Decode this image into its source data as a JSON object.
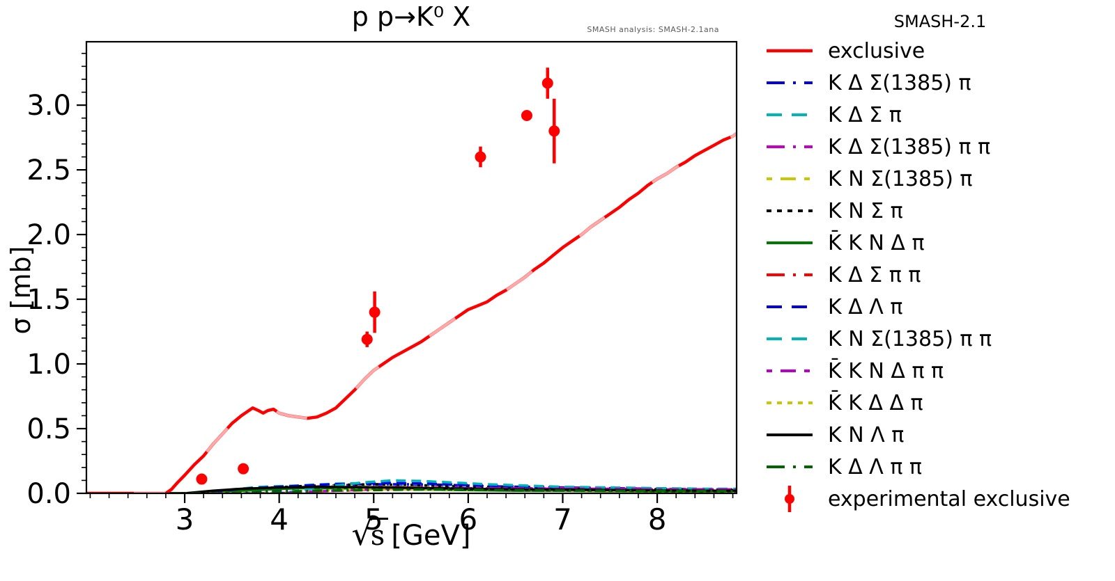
{
  "figure": {
    "title": "p p→K⁰ X",
    "watermark": "SMASH analysis: SMASH-2.1ana"
  },
  "axes": {
    "ylabel": "σ [mb]",
    "xlabel": {
      "radical": "√",
      "radicand": "s",
      "unit": "[GeV]"
    }
  },
  "legend": {
    "title": "SMASH-2.1",
    "experimental_label": "experimental exclusive"
  },
  "chart_data": {
    "type": "line",
    "title": "p p→K⁰ X",
    "xlabel": "√s [GeV]",
    "ylabel": "σ [mb]",
    "xlim": [
      1.96,
      8.84
    ],
    "ylim": [
      0,
      3.49
    ],
    "x_major_ticks": [
      3,
      4,
      5,
      6,
      7,
      8
    ],
    "x_tick_labels": [
      "3",
      "4",
      "5",
      "6",
      "7",
      "8"
    ],
    "x_minor_step": 0.2,
    "y_major_ticks": [
      0,
      0.5,
      1.0,
      1.5,
      2.0,
      2.5,
      3.0
    ],
    "y_tick_labels": [
      "0.0",
      "0.5",
      "1.0",
      "1.5",
      "2.0",
      "2.5",
      "3.0"
    ],
    "y_minor_step": 0.1,
    "grid": false,
    "legend_position": "right",
    "series": [
      {
        "name": "exclusive",
        "color": "#ff0000",
        "style": "solid",
        "width": 4.5,
        "overlay_color": "#ffa8a8",
        "points": [
          [
            1.96,
            0
          ],
          [
            2.4,
            0
          ],
          [
            2.8,
            0
          ],
          [
            2.86,
            0.03
          ],
          [
            2.92,
            0.08
          ],
          [
            3.0,
            0.14
          ],
          [
            3.1,
            0.22
          ],
          [
            3.2,
            0.29
          ],
          [
            3.3,
            0.38
          ],
          [
            3.4,
            0.46
          ],
          [
            3.5,
            0.54
          ],
          [
            3.6,
            0.6
          ],
          [
            3.66,
            0.63
          ],
          [
            3.72,
            0.66
          ],
          [
            3.78,
            0.64
          ],
          [
            3.83,
            0.62
          ],
          [
            3.88,
            0.64
          ],
          [
            3.94,
            0.65
          ],
          [
            4.0,
            0.62
          ],
          [
            4.1,
            0.6
          ],
          [
            4.2,
            0.59
          ],
          [
            4.3,
            0.58
          ],
          [
            4.4,
            0.59
          ],
          [
            4.5,
            0.62
          ],
          [
            4.6,
            0.66
          ],
          [
            4.7,
            0.73
          ],
          [
            4.8,
            0.8
          ],
          [
            4.9,
            0.88
          ],
          [
            5.0,
            0.95
          ],
          [
            5.1,
            1.0
          ],
          [
            5.2,
            1.05
          ],
          [
            5.3,
            1.09
          ],
          [
            5.4,
            1.13
          ],
          [
            5.5,
            1.17
          ],
          [
            5.6,
            1.22
          ],
          [
            5.7,
            1.27
          ],
          [
            5.8,
            1.32
          ],
          [
            5.9,
            1.37
          ],
          [
            6.0,
            1.42
          ],
          [
            6.1,
            1.45
          ],
          [
            6.2,
            1.48
          ],
          [
            6.3,
            1.53
          ],
          [
            6.4,
            1.57
          ],
          [
            6.5,
            1.62
          ],
          [
            6.6,
            1.67
          ],
          [
            6.7,
            1.73
          ],
          [
            6.8,
            1.78
          ],
          [
            6.9,
            1.84
          ],
          [
            7.0,
            1.9
          ],
          [
            7.1,
            1.95
          ],
          [
            7.2,
            2.0
          ],
          [
            7.3,
            2.06
          ],
          [
            7.4,
            2.11
          ],
          [
            7.5,
            2.16
          ],
          [
            7.6,
            2.21
          ],
          [
            7.7,
            2.27
          ],
          [
            7.8,
            2.32
          ],
          [
            7.9,
            2.38
          ],
          [
            8.0,
            2.43
          ],
          [
            8.1,
            2.47
          ],
          [
            8.2,
            2.52
          ],
          [
            8.3,
            2.56
          ],
          [
            8.4,
            2.61
          ],
          [
            8.5,
            2.65
          ],
          [
            8.6,
            2.69
          ],
          [
            8.7,
            2.73
          ],
          [
            8.8,
            2.76
          ],
          [
            8.84,
            2.78
          ]
        ]
      },
      {
        "name": "K Δ Σ(1385) π",
        "color": "#0000e0",
        "style": "dashdot",
        "width": 3.5,
        "points": [
          [
            2.0,
            0
          ],
          [
            3.6,
            0
          ],
          [
            3.9,
            0.02
          ],
          [
            4.2,
            0.04
          ],
          [
            4.6,
            0.06
          ],
          [
            5.0,
            0.07
          ],
          [
            5.4,
            0.07
          ],
          [
            5.8,
            0.065
          ],
          [
            6.2,
            0.055
          ],
          [
            6.6,
            0.05
          ],
          [
            7.0,
            0.045
          ],
          [
            7.5,
            0.04
          ],
          [
            8.0,
            0.035
          ],
          [
            8.5,
            0.03
          ],
          [
            8.84,
            0.03
          ]
        ]
      },
      {
        "name": "K Δ Σ π",
        "color": "#00b5b5",
        "style": "dashed",
        "width": 3.5,
        "points": [
          [
            2.0,
            0
          ],
          [
            3.25,
            0
          ],
          [
            3.5,
            0.03
          ],
          [
            3.8,
            0.05
          ],
          [
            4.2,
            0.06
          ],
          [
            4.6,
            0.075
          ],
          [
            5.0,
            0.08
          ],
          [
            5.4,
            0.075
          ],
          [
            5.8,
            0.065
          ],
          [
            6.2,
            0.055
          ],
          [
            6.6,
            0.045
          ],
          [
            7.0,
            0.04
          ],
          [
            7.5,
            0.035
          ],
          [
            8.0,
            0.03
          ],
          [
            8.5,
            0.025
          ],
          [
            8.84,
            0.025
          ]
        ]
      },
      {
        "name": "K Δ Σ(1385) π π",
        "color": "#c400c4",
        "style": "dashdot",
        "width": 3.5,
        "points": [
          [
            2.0,
            0
          ],
          [
            3.5,
            0
          ],
          [
            3.8,
            0.03
          ],
          [
            4.1,
            0.05
          ],
          [
            4.5,
            0.055
          ],
          [
            5.0,
            0.05
          ],
          [
            5.5,
            0.05
          ],
          [
            6.0,
            0.045
          ],
          [
            6.5,
            0.04
          ],
          [
            7.0,
            0.04
          ],
          [
            7.5,
            0.035
          ],
          [
            8.0,
            0.035
          ],
          [
            8.5,
            0.03
          ],
          [
            8.84,
            0.03
          ]
        ]
      },
      {
        "name": "K N Σ(1385) π",
        "color": "#c8c800",
        "style": "shortlong",
        "width": 3.5,
        "points": [
          [
            2.0,
            0
          ],
          [
            3.4,
            0
          ],
          [
            3.6,
            0.02
          ],
          [
            3.9,
            0.04
          ],
          [
            4.3,
            0.05
          ],
          [
            4.7,
            0.055
          ],
          [
            5.1,
            0.05
          ],
          [
            5.5,
            0.045
          ],
          [
            6.0,
            0.04
          ],
          [
            6.5,
            0.035
          ],
          [
            7.0,
            0.03
          ],
          [
            7.5,
            0.028
          ],
          [
            8.0,
            0.025
          ],
          [
            8.5,
            0.022
          ],
          [
            8.84,
            0.02
          ]
        ]
      },
      {
        "name": "K N Σ π",
        "color": "#000000",
        "style": "dotted",
        "width": 3.5,
        "points": [
          [
            2.0,
            0
          ],
          [
            3.2,
            0
          ],
          [
            3.5,
            0.025
          ],
          [
            3.8,
            0.04
          ],
          [
            4.2,
            0.055
          ],
          [
            4.6,
            0.065
          ],
          [
            5.0,
            0.07
          ],
          [
            5.4,
            0.065
          ],
          [
            5.8,
            0.055
          ],
          [
            6.2,
            0.05
          ],
          [
            6.6,
            0.04
          ],
          [
            7.0,
            0.035
          ],
          [
            7.5,
            0.03
          ],
          [
            8.0,
            0.03
          ],
          [
            8.5,
            0.025
          ],
          [
            8.84,
            0.025
          ]
        ]
      },
      {
        "name": "K̄ K N Δ π",
        "color": "#007a00",
        "style": "solid",
        "width": 3.5,
        "points": [
          [
            2.0,
            0
          ],
          [
            3.3,
            0
          ],
          [
            3.6,
            0.02
          ],
          [
            3.9,
            0.03
          ],
          [
            4.2,
            0.04
          ],
          [
            4.6,
            0.04
          ],
          [
            5.0,
            0.035
          ],
          [
            5.5,
            0.03
          ],
          [
            6.0,
            0.025
          ],
          [
            6.5,
            0.02
          ],
          [
            7.0,
            0.02
          ],
          [
            7.5,
            0.018
          ],
          [
            8.0,
            0.015
          ],
          [
            8.5,
            0.015
          ],
          [
            8.84,
            0.015
          ]
        ]
      },
      {
        "name": "K Δ Σ π π",
        "color": "#ff0000",
        "style": "dashdot",
        "width": 3.5,
        "points": [
          [
            2.0,
            0
          ],
          [
            3.8,
            0
          ],
          [
            4.2,
            0.01
          ],
          [
            4.6,
            0.02
          ],
          [
            5.0,
            0.025
          ],
          [
            5.5,
            0.03
          ],
          [
            6.0,
            0.03
          ],
          [
            6.5,
            0.028
          ],
          [
            7.0,
            0.025
          ],
          [
            7.5,
            0.025
          ],
          [
            8.0,
            0.022
          ],
          [
            8.5,
            0.02
          ],
          [
            8.84,
            0.02
          ]
        ]
      },
      {
        "name": "K Δ Λ π",
        "color": "#0000e0",
        "style": "dashed",
        "width": 3.5,
        "points": [
          [
            2.0,
            0
          ],
          [
            3.1,
            0
          ],
          [
            3.4,
            0.02
          ],
          [
            3.7,
            0.04
          ],
          [
            4.0,
            0.05
          ],
          [
            4.4,
            0.065
          ],
          [
            4.8,
            0.075
          ],
          [
            5.2,
            0.08
          ],
          [
            5.6,
            0.075
          ],
          [
            6.0,
            0.065
          ],
          [
            6.4,
            0.055
          ],
          [
            6.8,
            0.05
          ],
          [
            7.2,
            0.045
          ],
          [
            7.6,
            0.04
          ],
          [
            8.0,
            0.035
          ],
          [
            8.5,
            0.03
          ],
          [
            8.84,
            0.03
          ]
        ]
      },
      {
        "name": "K N Σ(1385) π π",
        "color": "#00b5b5",
        "style": "dashed",
        "width": 3.5,
        "points": [
          [
            2.0,
            0
          ],
          [
            4.0,
            0
          ],
          [
            4.3,
            0.03
          ],
          [
            4.6,
            0.06
          ],
          [
            4.9,
            0.085
          ],
          [
            5.2,
            0.1
          ],
          [
            5.5,
            0.095
          ],
          [
            5.8,
            0.085
          ],
          [
            6.2,
            0.07
          ],
          [
            6.6,
            0.06
          ],
          [
            7.0,
            0.05
          ],
          [
            7.5,
            0.045
          ],
          [
            8.0,
            0.04
          ],
          [
            8.5,
            0.035
          ],
          [
            8.84,
            0.035
          ]
        ]
      },
      {
        "name": "K̄ K N Δ π π",
        "color": "#b800c8",
        "style": "shortlong",
        "width": 3.5,
        "points": [
          [
            2.0,
            0
          ],
          [
            4.0,
            0
          ],
          [
            4.4,
            0.015
          ],
          [
            4.8,
            0.025
          ],
          [
            5.2,
            0.035
          ],
          [
            5.6,
            0.04
          ],
          [
            6.0,
            0.04
          ],
          [
            6.5,
            0.038
          ],
          [
            7.0,
            0.035
          ],
          [
            7.5,
            0.035
          ],
          [
            8.0,
            0.03
          ],
          [
            8.5,
            0.03
          ],
          [
            8.84,
            0.03
          ]
        ]
      },
      {
        "name": "K̄ K Δ Δ π",
        "color": "#c8c800",
        "style": "dotted",
        "width": 3.5,
        "points": [
          [
            2.0,
            0
          ],
          [
            3.7,
            0
          ],
          [
            4.0,
            0.01
          ],
          [
            4.4,
            0.02
          ],
          [
            4.8,
            0.03
          ],
          [
            5.2,
            0.032
          ],
          [
            5.6,
            0.03
          ],
          [
            6.0,
            0.028
          ],
          [
            6.5,
            0.025
          ],
          [
            7.0,
            0.022
          ],
          [
            7.5,
            0.02
          ],
          [
            8.0,
            0.018
          ],
          [
            8.5,
            0.015
          ],
          [
            8.84,
            0.015
          ]
        ]
      },
      {
        "name": "K N Λ π",
        "color": "#000000",
        "style": "solid",
        "width": 3.5,
        "points": [
          [
            2.0,
            0
          ],
          [
            3.0,
            0
          ],
          [
            3.3,
            0.02
          ],
          [
            3.6,
            0.035
          ],
          [
            4.0,
            0.045
          ],
          [
            4.4,
            0.05
          ],
          [
            4.8,
            0.048
          ],
          [
            5.2,
            0.045
          ],
          [
            5.6,
            0.04
          ],
          [
            6.0,
            0.035
          ],
          [
            6.5,
            0.03
          ],
          [
            7.0,
            0.028
          ],
          [
            7.5,
            0.025
          ],
          [
            8.0,
            0.022
          ],
          [
            8.5,
            0.02
          ],
          [
            8.84,
            0.02
          ]
        ]
      },
      {
        "name": "K Δ Λ π π",
        "color": "#006400",
        "style": "dashdot",
        "width": 3.5,
        "points": [
          [
            2.0,
            0
          ],
          [
            3.6,
            0
          ],
          [
            4.0,
            0.012
          ],
          [
            4.4,
            0.02
          ],
          [
            4.8,
            0.025
          ],
          [
            5.2,
            0.028
          ],
          [
            5.6,
            0.03
          ],
          [
            6.0,
            0.028
          ],
          [
            6.5,
            0.025
          ],
          [
            7.0,
            0.022
          ],
          [
            7.5,
            0.02
          ],
          [
            8.0,
            0.02
          ],
          [
            8.5,
            0.018
          ],
          [
            8.84,
            0.018
          ]
        ]
      }
    ],
    "experimental": {
      "name": "experimental exclusive",
      "color": "#ff0000",
      "points": [
        {
          "x": 3.18,
          "y": 0.11,
          "err": 0.03
        },
        {
          "x": 3.62,
          "y": 0.19,
          "err": 0.04
        },
        {
          "x": 4.93,
          "y": 1.19,
          "err": 0.06
        },
        {
          "x": 5.01,
          "y": 1.4,
          "err": 0.16
        },
        {
          "x": 6.13,
          "y": 2.6,
          "err": 0.08
        },
        {
          "x": 6.62,
          "y": 2.92,
          "err": 0.04
        },
        {
          "x": 6.84,
          "y": 3.17,
          "err": 0.12
        },
        {
          "x": 6.91,
          "y": 2.8,
          "err": 0.25
        }
      ]
    }
  }
}
